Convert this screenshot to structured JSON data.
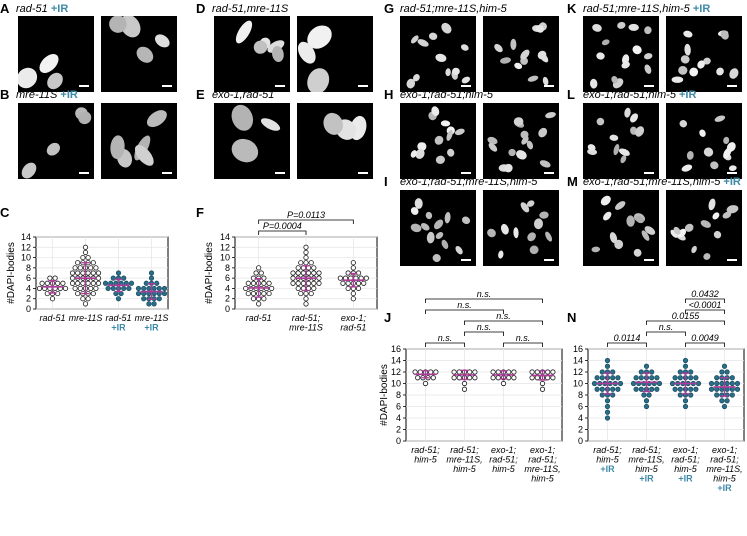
{
  "colors": {
    "accent_ir": "#3d8aa8",
    "mean_bar": "#b03a9c",
    "dot_black": "#1a1a1a",
    "dot_teal": "#2a6f8a"
  },
  "panels": [
    {
      "letter": "A",
      "title": "rad-51",
      "ir": "+IR"
    },
    {
      "letter": "B",
      "title": "mre-11S",
      "ir": "+IR"
    },
    {
      "letter": "D",
      "title": "rad-51,mre-11S",
      "ir": ""
    },
    {
      "letter": "E",
      "title": "exo-1,rad-51",
      "ir": ""
    },
    {
      "letter": "G",
      "title": "rad-51;mre-11S,him-5",
      "ir": ""
    },
    {
      "letter": "H",
      "title": "exo-1;rad-51;him-5",
      "ir": ""
    },
    {
      "letter": "I",
      "title": "exo-1;rad-51;mre-11S,him-5",
      "ir": ""
    },
    {
      "letter": "K",
      "title": "rad-51;mre-11S,him-5",
      "ir": "+IR"
    },
    {
      "letter": "L",
      "title": "exo-1;rad-51;him-5",
      "ir": "+IR"
    },
    {
      "letter": "M",
      "title": "exo-1;rad-51;mre-11S,him-5",
      "ir": "+IR"
    }
  ],
  "chart_data": [
    {
      "panel": "C",
      "type": "scatter",
      "ylabel": "#DAPI-bodies",
      "ylim": [
        0,
        14
      ],
      "yticks": [
        0,
        2,
        4,
        6,
        8,
        10,
        12,
        14
      ],
      "grid": true,
      "groups": [
        {
          "label": [
            "rad-51"
          ],
          "ir": "",
          "color": "black",
          "mean": 4.3,
          "sd": 1.2,
          "min": 2,
          "max": 6
        },
        {
          "label": [
            "mre-11S"
          ],
          "ir": "",
          "color": "black",
          "mean": 6.0,
          "sd": 3.0,
          "min": 1,
          "max": 12
        },
        {
          "label": [
            "rad-51"
          ],
          "ir": "+IR",
          "color": "teal",
          "mean": 4.6,
          "sd": 1.2,
          "min": 2,
          "max": 7
        },
        {
          "label": [
            "mre-11S"
          ],
          "ir": "+IR",
          "color": "teal",
          "mean": 3.4,
          "sd": 1.5,
          "min": 1,
          "max": 7
        }
      ],
      "comparisons": []
    },
    {
      "panel": "F",
      "type": "scatter",
      "ylabel": "#DAPI-bodies",
      "ylim": [
        0,
        14
      ],
      "yticks": [
        0,
        2,
        4,
        6,
        8,
        10,
        12,
        14
      ],
      "grid": true,
      "groups": [
        {
          "label": [
            "rad-51"
          ],
          "ir": "",
          "color": "black",
          "mean": 4.1,
          "sd": 1.8,
          "min": 1,
          "max": 8
        },
        {
          "label": [
            "rad-51;",
            "mre-11S"
          ],
          "ir": "",
          "color": "black",
          "mean": 6.0,
          "sd": 2.4,
          "min": 1,
          "max": 12
        },
        {
          "label": [
            "exo-1;",
            "rad-51"
          ],
          "ir": "",
          "color": "black",
          "mean": 5.6,
          "sd": 1.3,
          "min": 2,
          "max": 9
        }
      ],
      "comparisons": [
        {
          "from": 0,
          "to": 1,
          "text": "P=0.0004"
        },
        {
          "from": 0,
          "to": 2,
          "text": "P=0.0113"
        }
      ]
    },
    {
      "panel": "J",
      "type": "scatter",
      "ylabel": "#DAPI-bodies",
      "ylim": [
        0,
        16
      ],
      "yticks": [
        0,
        2,
        4,
        6,
        8,
        10,
        12,
        14,
        16
      ],
      "grid": true,
      "groups": [
        {
          "label": [
            "rad-51;",
            "him-5"
          ],
          "ir": "",
          "color": "black",
          "mean": 11.6,
          "sd": 0.6,
          "min": 10,
          "max": 12
        },
        {
          "label": [
            "rad-51;",
            "mre-11S,",
            "him-5"
          ],
          "ir": "",
          "color": "black",
          "mean": 11.5,
          "sd": 0.8,
          "min": 9,
          "max": 12
        },
        {
          "label": [
            "exo-1;",
            "rad-51;",
            "him-5"
          ],
          "ir": "",
          "color": "black",
          "mean": 11.5,
          "sd": 0.7,
          "min": 10,
          "max": 12
        },
        {
          "label": [
            "exo-1;",
            "rad-51;",
            "mre-11S,",
            "him-5"
          ],
          "ir": "",
          "color": "black",
          "mean": 11.4,
          "sd": 0.8,
          "min": 9,
          "max": 12
        }
      ],
      "comparisons": [
        {
          "from": 0,
          "to": 1,
          "text": "n.s."
        },
        {
          "from": 1,
          "to": 2,
          "text": "n.s."
        },
        {
          "from": 1,
          "to": 3,
          "text": "n.s."
        },
        {
          "from": 2,
          "to": 3,
          "text": "n.s."
        },
        {
          "from": 0,
          "to": 2,
          "text": "n.s."
        },
        {
          "from": 0,
          "to": 3,
          "text": "n.s."
        }
      ]
    },
    {
      "panel": "N",
      "type": "scatter",
      "ylabel": "",
      "ylim": [
        0,
        16
      ],
      "yticks": [
        0,
        2,
        4,
        6,
        8,
        10,
        12,
        14,
        16
      ],
      "grid": true,
      "groups": [
        {
          "label": [
            "rad-51;",
            "him-5"
          ],
          "ir": "+IR",
          "color": "teal",
          "mean": 10.0,
          "sd": 1.8,
          "min": 4,
          "max": 14
        },
        {
          "label": [
            "rad-51;",
            "mre-11S,",
            "him-5"
          ],
          "ir": "+IR",
          "color": "teal",
          "mean": 10.2,
          "sd": 1.6,
          "min": 6,
          "max": 13
        },
        {
          "label": [
            "exo-1;",
            "rad-51;",
            "him-5"
          ],
          "ir": "+IR",
          "color": "teal",
          "mean": 10.0,
          "sd": 1.8,
          "min": 6,
          "max": 14
        },
        {
          "label": [
            "exo-1;",
            "rad-51;",
            "mre-11S,",
            "him-5"
          ],
          "ir": "+IR",
          "color": "teal",
          "mean": 9.4,
          "sd": 1.6,
          "min": 6,
          "max": 13
        }
      ],
      "comparisons": [
        {
          "from": 0,
          "to": 1,
          "text": "0.0114"
        },
        {
          "from": 1,
          "to": 2,
          "text": "n.s."
        },
        {
          "from": 2,
          "to": 3,
          "text": "0.0049"
        },
        {
          "from": 1,
          "to": 3,
          "text": "0.0155"
        },
        {
          "from": 2,
          "to": 3,
          "text": "<0.0001"
        },
        {
          "from": 2,
          "to": 3,
          "text": "0.0432"
        }
      ]
    }
  ]
}
